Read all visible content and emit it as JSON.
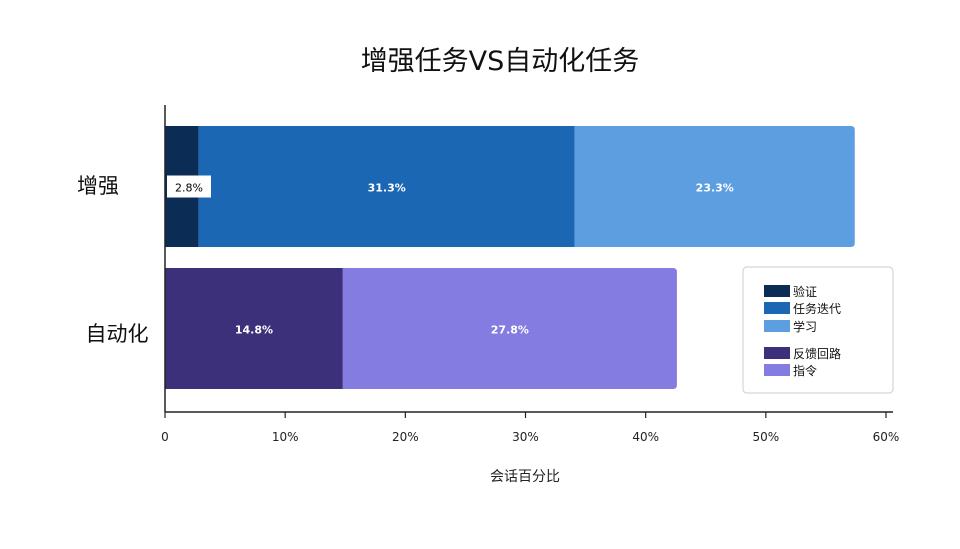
{
  "chart_data": {
    "type": "bar",
    "orientation": "horizontal",
    "stacked": true,
    "title": "增强任务VS自动化任务",
    "xlabel": "会话百分比",
    "ylabel": "",
    "xlim": [
      0,
      60
    ],
    "x_ticks": [
      "0",
      "10%",
      "20%",
      "30%",
      "40%",
      "50%",
      "60%"
    ],
    "grid": false,
    "legend_position": "right-bottom",
    "categories": [
      "增强",
      "自动化"
    ],
    "series": [
      {
        "name": "验证",
        "category": "增强",
        "value": 2.8,
        "label": "2.8%",
        "color": "#0b2d55",
        "label_color": "#000000",
        "label_box": true
      },
      {
        "name": "任务迭代",
        "category": "增强",
        "value": 31.3,
        "label": "31.3%",
        "color": "#1c67b3",
        "label_color": "#ffffff"
      },
      {
        "name": "学习",
        "category": "增强",
        "value": 23.3,
        "label": "23.3%",
        "color": "#5d9ee0",
        "label_color": "#ffffff"
      },
      {
        "name": "反馈回路",
        "category": "自动化",
        "value": 14.8,
        "label": "14.8%",
        "color": "#3b3079",
        "label_color": "#ffffff"
      },
      {
        "name": "指令",
        "category": "自动化",
        "value": 27.8,
        "label": "27.8%",
        "color": "#847ce0",
        "label_color": "#ffffff"
      }
    ],
    "legend": [
      {
        "name": "验证",
        "color": "#0b2d55"
      },
      {
        "name": "任务迭代",
        "color": "#1c67b3"
      },
      {
        "name": "学习",
        "color": "#5d9ee0"
      },
      {
        "name": "反馈回路",
        "color": "#3b3079"
      },
      {
        "name": "指令",
        "color": "#847ce0"
      }
    ]
  }
}
